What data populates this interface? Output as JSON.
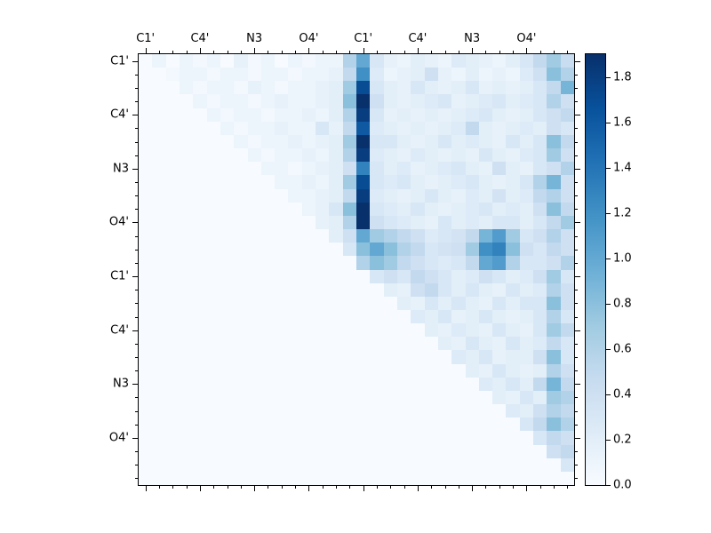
{
  "figure": {
    "background": "#ffffff"
  },
  "axes": {
    "top_tick_labels": [
      "C1'",
      "C4'",
      "N3",
      "O4'",
      "C1'",
      "C4'",
      "N3",
      "O4'"
    ],
    "left_tick_labels": [
      "C1'",
      "C4'",
      "N3",
      "O4'",
      "C1'",
      "C4'",
      "N3",
      "O4'"
    ]
  },
  "colorbar": {
    "tick_values": [
      0.0,
      0.2,
      0.4,
      0.6,
      0.8,
      1.0,
      1.2,
      1.4,
      1.6,
      1.8
    ],
    "vmin": 0.0,
    "vmax": 1.9
  },
  "chart_data": {
    "type": "heatmap",
    "size": 32,
    "x_tick_labels": [
      "C1'",
      "C4'",
      "N3",
      "O4'",
      "C1'",
      "C4'",
      "N3",
      "O4'"
    ],
    "y_tick_labels": [
      "C1'",
      "C4'",
      "N3",
      "O4'",
      "C1'",
      "C4'",
      "N3",
      "O4'"
    ],
    "tick_positions": [
      0.5,
      4.5,
      8.5,
      12.5,
      16.5,
      20.5,
      24.5,
      28.5
    ],
    "colormap": "Blues",
    "vmin": 0.0,
    "vmax": 1.9,
    "legend_position": "right",
    "grid": false,
    "title": "",
    "xlabel": "",
    "ylabel": "",
    "colormap_stops": [
      [
        0.0,
        "#f7fbff"
      ],
      [
        0.125,
        "#deebf7"
      ],
      [
        0.25,
        "#c6dbef"
      ],
      [
        0.375,
        "#9ecae1"
      ],
      [
        0.5,
        "#6baed6"
      ],
      [
        0.625,
        "#4292c6"
      ],
      [
        0.75,
        "#2171b5"
      ],
      [
        0.875,
        "#08519c"
      ],
      [
        1.0,
        "#08306b"
      ]
    ],
    "matrix": [
      [
        0,
        0.1,
        0,
        0.1,
        0.05,
        0.1,
        0,
        0.15,
        0.05,
        0.1,
        0,
        0.1,
        0.05,
        0.1,
        0.1,
        0.6,
        1.0,
        0.3,
        0.15,
        0.1,
        0.2,
        0.15,
        0.1,
        0.25,
        0.2,
        0.15,
        0.1,
        0.2,
        0.3,
        0.5,
        0.7,
        0.45
      ],
      [
        0,
        0,
        0.05,
        0.1,
        0.1,
        0.05,
        0.1,
        0.1,
        0.05,
        0.1,
        0.1,
        0.05,
        0.1,
        0.1,
        0.15,
        0.5,
        1.2,
        0.25,
        0.1,
        0.15,
        0.2,
        0.4,
        0.15,
        0.1,
        0.2,
        0.1,
        0.15,
        0.1,
        0.25,
        0.4,
        0.8,
        0.6
      ],
      [
        0,
        0,
        0,
        0.1,
        0.05,
        0.1,
        0.1,
        0.05,
        0.15,
        0.1,
        0.05,
        0.1,
        0.1,
        0.15,
        0.2,
        0.7,
        1.7,
        0.3,
        0.2,
        0.15,
        0.3,
        0.2,
        0.15,
        0.2,
        0.3,
        0.15,
        0.2,
        0.15,
        0.2,
        0.3,
        0.5,
        0.9
      ],
      [
        0,
        0,
        0,
        0,
        0.1,
        0.05,
        0.1,
        0.1,
        0.05,
        0.1,
        0.15,
        0.1,
        0.1,
        0.15,
        0.2,
        0.8,
        1.9,
        0.4,
        0.2,
        0.15,
        0.2,
        0.25,
        0.3,
        0.15,
        0.2,
        0.25,
        0.3,
        0.2,
        0.25,
        0.3,
        0.6,
        0.4
      ],
      [
        0,
        0,
        0,
        0,
        0,
        0.1,
        0.05,
        0.1,
        0.1,
        0.05,
        0.1,
        0.1,
        0.15,
        0.1,
        0.2,
        0.6,
        1.8,
        0.3,
        0.15,
        0.2,
        0.15,
        0.2,
        0.15,
        0.2,
        0.25,
        0.3,
        0.2,
        0.15,
        0.2,
        0.3,
        0.4,
        0.5
      ],
      [
        0,
        0,
        0,
        0,
        0,
        0,
        0.1,
        0.05,
        0.1,
        0.1,
        0.15,
        0.1,
        0.1,
        0.3,
        0.15,
        0.5,
        1.6,
        0.25,
        0.2,
        0.15,
        0.2,
        0.15,
        0.2,
        0.25,
        0.5,
        0.2,
        0.15,
        0.2,
        0.25,
        0.2,
        0.4,
        0.3
      ],
      [
        0,
        0,
        0,
        0,
        0,
        0,
        0,
        0.1,
        0.05,
        0.1,
        0.1,
        0.15,
        0.1,
        0.15,
        0.2,
        0.7,
        1.9,
        0.3,
        0.3,
        0.2,
        0.15,
        0.2,
        0.3,
        0.2,
        0.25,
        0.2,
        0.15,
        0.3,
        0.2,
        0.3,
        0.8,
        0.5
      ],
      [
        0,
        0,
        0,
        0,
        0,
        0,
        0,
        0,
        0.1,
        0.05,
        0.1,
        0.1,
        0.15,
        0.1,
        0.2,
        0.6,
        1.8,
        0.25,
        0.2,
        0.15,
        0.25,
        0.2,
        0.15,
        0.2,
        0.15,
        0.3,
        0.2,
        0.15,
        0.25,
        0.3,
        0.7,
        0.4
      ],
      [
        0,
        0,
        0,
        0,
        0,
        0,
        0,
        0,
        0,
        0.1,
        0.1,
        0.05,
        0.1,
        0.15,
        0.2,
        0.4,
        1.3,
        0.3,
        0.2,
        0.25,
        0.15,
        0.2,
        0.25,
        0.3,
        0.2,
        0.15,
        0.4,
        0.2,
        0.15,
        0.3,
        0.4,
        0.6
      ],
      [
        0,
        0,
        0,
        0,
        0,
        0,
        0,
        0,
        0,
        0,
        0.1,
        0.1,
        0.15,
        0.1,
        0.2,
        0.7,
        1.7,
        0.3,
        0.25,
        0.3,
        0.2,
        0.15,
        0.2,
        0.25,
        0.3,
        0.2,
        0.15,
        0.2,
        0.3,
        0.6,
        0.9,
        0.4
      ],
      [
        0,
        0,
        0,
        0,
        0,
        0,
        0,
        0,
        0,
        0,
        0,
        0.1,
        0.1,
        0.15,
        0.2,
        0.5,
        1.8,
        0.25,
        0.2,
        0.15,
        0.2,
        0.3,
        0.2,
        0.15,
        0.25,
        0.2,
        0.35,
        0.2,
        0.25,
        0.5,
        0.6,
        0.4
      ],
      [
        0,
        0,
        0,
        0,
        0,
        0,
        0,
        0,
        0,
        0,
        0,
        0,
        0.1,
        0.15,
        0.3,
        0.8,
        1.9,
        0.3,
        0.25,
        0.2,
        0.3,
        0.2,
        0.15,
        0.2,
        0.25,
        0.3,
        0.2,
        0.25,
        0.2,
        0.4,
        0.8,
        0.5
      ],
      [
        0,
        0,
        0,
        0,
        0,
        0,
        0,
        0,
        0,
        0,
        0,
        0,
        0,
        0.15,
        0.2,
        0.6,
        1.9,
        0.4,
        0.3,
        0.25,
        0.2,
        0.15,
        0.3,
        0.2,
        0.25,
        0.2,
        0.3,
        0.3,
        0.2,
        0.3,
        0.5,
        0.7
      ],
      [
        0,
        0,
        0,
        0,
        0,
        0,
        0,
        0,
        0,
        0,
        0,
        0,
        0,
        0,
        0.2,
        0.4,
        1.0,
        0.7,
        0.6,
        0.5,
        0.4,
        0.25,
        0.3,
        0.35,
        0.5,
        0.9,
        1.1,
        0.7,
        0.3,
        0.4,
        0.6,
        0.4
      ],
      [
        0,
        0,
        0,
        0,
        0,
        0,
        0,
        0,
        0,
        0,
        0,
        0,
        0,
        0,
        0,
        0.3,
        0.8,
        1.0,
        0.8,
        0.6,
        0.5,
        0.3,
        0.35,
        0.4,
        0.7,
        1.2,
        1.3,
        0.8,
        0.4,
        0.3,
        0.5,
        0.4
      ],
      [
        0,
        0,
        0,
        0,
        0,
        0,
        0,
        0,
        0,
        0,
        0,
        0,
        0,
        0,
        0,
        0,
        0.6,
        0.8,
        0.7,
        0.5,
        0.4,
        0.3,
        0.25,
        0.3,
        0.5,
        1.0,
        1.1,
        0.6,
        0.3,
        0.3,
        0.4,
        0.6
      ],
      [
        0,
        0,
        0,
        0,
        0,
        0,
        0,
        0,
        0,
        0,
        0,
        0,
        0,
        0,
        0,
        0,
        0,
        0.3,
        0.4,
        0.3,
        0.5,
        0.4,
        0.3,
        0.2,
        0.25,
        0.4,
        0.3,
        0.2,
        0.25,
        0.4,
        0.7,
        0.3
      ],
      [
        0,
        0,
        0,
        0,
        0,
        0,
        0,
        0,
        0,
        0,
        0,
        0,
        0,
        0,
        0,
        0,
        0,
        0,
        0.2,
        0.15,
        0.4,
        0.5,
        0.3,
        0.2,
        0.3,
        0.2,
        0.15,
        0.3,
        0.2,
        0.25,
        0.6,
        0.4
      ],
      [
        0,
        0,
        0,
        0,
        0,
        0,
        0,
        0,
        0,
        0,
        0,
        0,
        0,
        0,
        0,
        0,
        0,
        0,
        0,
        0.2,
        0.15,
        0.3,
        0.2,
        0.3,
        0.2,
        0.15,
        0.3,
        0.2,
        0.3,
        0.3,
        0.8,
        0.4
      ],
      [
        0,
        0,
        0,
        0,
        0,
        0,
        0,
        0,
        0,
        0,
        0,
        0,
        0,
        0,
        0,
        0,
        0,
        0,
        0,
        0,
        0.25,
        0.2,
        0.3,
        0.15,
        0.2,
        0.3,
        0.2,
        0.15,
        0.2,
        0.3,
        0.6,
        0.3
      ],
      [
        0,
        0,
        0,
        0,
        0,
        0,
        0,
        0,
        0,
        0,
        0,
        0,
        0,
        0,
        0,
        0,
        0,
        0,
        0,
        0,
        0,
        0.2,
        0.15,
        0.25,
        0.2,
        0.15,
        0.3,
        0.2,
        0.15,
        0.3,
        0.7,
        0.5
      ],
      [
        0,
        0,
        0,
        0,
        0,
        0,
        0,
        0,
        0,
        0,
        0,
        0,
        0,
        0,
        0,
        0,
        0,
        0,
        0,
        0,
        0,
        0,
        0.2,
        0.15,
        0.3,
        0.2,
        0.15,
        0.3,
        0.2,
        0.25,
        0.5,
        0.3
      ],
      [
        0,
        0,
        0,
        0,
        0,
        0,
        0,
        0,
        0,
        0,
        0,
        0,
        0,
        0,
        0,
        0,
        0,
        0,
        0,
        0,
        0,
        0,
        0,
        0.25,
        0.2,
        0.3,
        0.15,
        0.2,
        0.2,
        0.4,
        0.8,
        0.3
      ],
      [
        0,
        0,
        0,
        0,
        0,
        0,
        0,
        0,
        0,
        0,
        0,
        0,
        0,
        0,
        0,
        0,
        0,
        0,
        0,
        0,
        0,
        0,
        0,
        0,
        0.2,
        0.15,
        0.3,
        0.2,
        0.15,
        0.2,
        0.6,
        0.4
      ],
      [
        0,
        0,
        0,
        0,
        0,
        0,
        0,
        0,
        0,
        0,
        0,
        0,
        0,
        0,
        0,
        0,
        0,
        0,
        0,
        0,
        0,
        0,
        0,
        0,
        0,
        0.25,
        0.2,
        0.3,
        0.2,
        0.5,
        0.9,
        0.5
      ],
      [
        0,
        0,
        0,
        0,
        0,
        0,
        0,
        0,
        0,
        0,
        0,
        0,
        0,
        0,
        0,
        0,
        0,
        0,
        0,
        0,
        0,
        0,
        0,
        0,
        0,
        0,
        0.2,
        0.15,
        0.3,
        0.2,
        0.7,
        0.6
      ],
      [
        0,
        0,
        0,
        0,
        0,
        0,
        0,
        0,
        0,
        0,
        0,
        0,
        0,
        0,
        0,
        0,
        0,
        0,
        0,
        0,
        0,
        0,
        0,
        0,
        0,
        0,
        0,
        0.25,
        0.2,
        0.4,
        0.6,
        0.5
      ],
      [
        0,
        0,
        0,
        0,
        0,
        0,
        0,
        0,
        0,
        0,
        0,
        0,
        0,
        0,
        0,
        0,
        0,
        0,
        0,
        0,
        0,
        0,
        0,
        0,
        0,
        0,
        0,
        0,
        0.3,
        0.5,
        0.8,
        0.6
      ],
      [
        0,
        0,
        0,
        0,
        0,
        0,
        0,
        0,
        0,
        0,
        0,
        0,
        0,
        0,
        0,
        0,
        0,
        0,
        0,
        0,
        0,
        0,
        0,
        0,
        0,
        0,
        0,
        0,
        0,
        0.3,
        0.5,
        0.4
      ],
      [
        0,
        0,
        0,
        0,
        0,
        0,
        0,
        0,
        0,
        0,
        0,
        0,
        0,
        0,
        0,
        0,
        0,
        0,
        0,
        0,
        0,
        0,
        0,
        0,
        0,
        0,
        0,
        0,
        0,
        0,
        0.4,
        0.5
      ],
      [
        0,
        0,
        0,
        0,
        0,
        0,
        0,
        0,
        0,
        0,
        0,
        0,
        0,
        0,
        0,
        0,
        0,
        0,
        0,
        0,
        0,
        0,
        0,
        0,
        0,
        0,
        0,
        0,
        0,
        0,
        0,
        0.3
      ],
      [
        0,
        0,
        0,
        0,
        0,
        0,
        0,
        0,
        0,
        0,
        0,
        0,
        0,
        0,
        0,
        0,
        0,
        0,
        0,
        0,
        0,
        0,
        0,
        0,
        0,
        0,
        0,
        0,
        0,
        0,
        0,
        0
      ]
    ]
  }
}
